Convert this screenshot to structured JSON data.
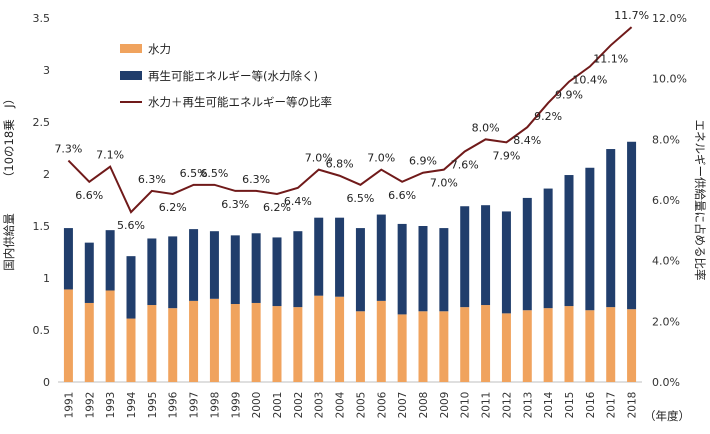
{
  "chart_data": {
    "type": "bar",
    "stacked": true,
    "categories": [
      "1991",
      "1992",
      "1993",
      "1994",
      "1995",
      "1996",
      "1997",
      "1998",
      "1999",
      "2000",
      "2001",
      "2002",
      "2003",
      "2004",
      "2005",
      "2006",
      "2007",
      "2008",
      "2009",
      "2010",
      "2011",
      "2012",
      "2013",
      "2014",
      "2015",
      "2016",
      "2017",
      "2018"
    ],
    "series": [
      {
        "name": "水力",
        "type": "bar",
        "axis": "left",
        "color": "#F0A35E",
        "values": [
          0.89,
          0.76,
          0.88,
          0.61,
          0.74,
          0.71,
          0.78,
          0.8,
          0.75,
          0.76,
          0.73,
          0.72,
          0.83,
          0.82,
          0.68,
          0.78,
          0.65,
          0.68,
          0.68,
          0.72,
          0.74,
          0.66,
          0.69,
          0.71,
          0.73,
          0.69,
          0.72,
          0.7
        ]
      },
      {
        "name": "再生可能エネルギー等(水力除く)",
        "type": "bar",
        "axis": "left",
        "color": "#213E6C",
        "values": [
          0.59,
          0.58,
          0.58,
          0.6,
          0.64,
          0.69,
          0.69,
          0.65,
          0.66,
          0.67,
          0.66,
          0.73,
          0.75,
          0.76,
          0.8,
          0.83,
          0.87,
          0.82,
          0.8,
          0.97,
          0.96,
          0.98,
          1.08,
          1.15,
          1.26,
          1.37,
          1.52,
          1.61
        ]
      },
      {
        "name": "水力＋再生可能エネルギー等の比率",
        "type": "line",
        "axis": "right",
        "color": "#701A1A",
        "values": [
          7.3,
          6.6,
          7.1,
          5.6,
          6.3,
          6.2,
          6.5,
          6.5,
          6.3,
          6.3,
          6.2,
          6.4,
          7.0,
          6.8,
          6.5,
          7.0,
          6.6,
          6.9,
          7.0,
          7.6,
          8.0,
          7.9,
          8.4,
          9.2,
          9.9,
          10.4,
          11.1,
          11.7
        ],
        "labels": [
          "7.3%",
          "6.6%",
          "7.1%",
          "5.6%",
          "6.3%",
          "6.2%",
          "6.5%",
          "6.5%",
          "6.3%",
          "6.3%",
          "6.2%",
          "6.4%",
          "7.0%",
          "6.8%",
          "6.5%",
          "7.0%",
          "6.6%",
          "6.9%",
          "7.0%",
          "7.6%",
          "8.0%",
          "7.9%",
          "8.4%",
          "9.2%",
          "9.9%",
          "10.4%",
          "11.1%",
          "11.7%"
        ],
        "label_pos": [
          "above",
          "below",
          "above",
          "below",
          "above",
          "below",
          "above",
          "above",
          "below",
          "above",
          "below",
          "below",
          "above",
          "above",
          "below",
          "above",
          "below",
          "above",
          "below",
          "below",
          "above",
          "below",
          "below",
          "below",
          "below",
          "below",
          "below",
          "above"
        ]
      }
    ],
    "ylabel": "国内供給量",
    "ylabel_unit": "（10の18乗　J）",
    "y2label": "エネルギー供給量に占める比率",
    "xlabel": "（年度）",
    "ylim": [
      0,
      3.5
    ],
    "y_ticks": [
      "0",
      "0.5",
      "1",
      "1.5",
      "2",
      "2.5",
      "3",
      "3.5"
    ],
    "y2lim": [
      0,
      12
    ],
    "y2_ticks": [
      "0.0%",
      "2.0%",
      "4.0%",
      "6.0%",
      "8.0%",
      "10.0%",
      "12.0%"
    ],
    "legend": [
      "水力",
      "再生可能エネルギー等(水力除く)",
      "水力＋再生可能エネルギー等の比率"
    ],
    "legend_position": "top-left",
    "grid": false
  }
}
